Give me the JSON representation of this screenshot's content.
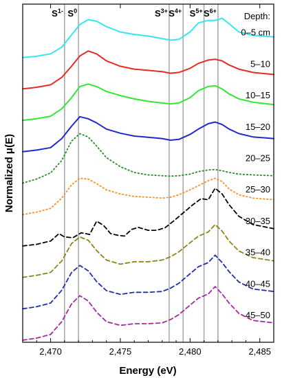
{
  "chart_data": {
    "type": "line",
    "title": "",
    "xlabel": "Energy (eV)",
    "ylabel": "Normalized μ(E)",
    "xlim": [
      2468,
      2486
    ],
    "x_ticks": [
      {
        "value": 2470,
        "label": "2,470"
      },
      {
        "value": 2475,
        "label": "2,475"
      },
      {
        "value": 2480,
        "label": "2,480"
      },
      {
        "value": 2485,
        "label": "2,485"
      }
    ],
    "legend_title": "Depth:",
    "reference_lines": [
      {
        "energy": 2471.0,
        "label": "S",
        "sup": "1-"
      },
      {
        "energy": 2472.0,
        "label": "S",
        "sup": "0"
      },
      {
        "energy": 2478.5,
        "label": "S",
        "sup": "3+"
      },
      {
        "energy": 2479.5,
        "label": "S",
        "sup": "4+"
      },
      {
        "energy": 2481.0,
        "label": "S",
        "sup": "5+"
      },
      {
        "energy": 2482.0,
        "label": "S",
        "sup": "6+"
      }
    ],
    "series": [
      {
        "name": "0–5 cm",
        "color": "#33e6f2",
        "dash": "solid",
        "offset": 9,
        "points": [
          [
            2468,
            0.0
          ],
          [
            2469,
            0.03
          ],
          [
            2470,
            0.09
          ],
          [
            2470.8,
            0.25
          ],
          [
            2471.5,
            0.55
          ],
          [
            2472.1,
            0.8
          ],
          [
            2472.7,
            0.92
          ],
          [
            2473.3,
            0.88
          ],
          [
            2474,
            0.75
          ],
          [
            2475,
            0.62
          ],
          [
            2476,
            0.56
          ],
          [
            2477,
            0.52
          ],
          [
            2478,
            0.46
          ],
          [
            2478.6,
            0.42
          ],
          [
            2479.2,
            0.44
          ],
          [
            2480,
            0.62
          ],
          [
            2480.6,
            0.84
          ],
          [
            2481.3,
            0.9
          ],
          [
            2481.8,
            0.9
          ],
          [
            2482.3,
            0.95
          ],
          [
            2482.8,
            0.82
          ],
          [
            2483.5,
            0.62
          ],
          [
            2484.5,
            0.54
          ],
          [
            2486,
            0.5
          ]
        ]
      },
      {
        "name": "5–10",
        "color": "#e62a1f",
        "dash": "solid",
        "offset": 8,
        "points": [
          [
            2468,
            0.0
          ],
          [
            2469,
            0.04
          ],
          [
            2470,
            0.1
          ],
          [
            2470.8,
            0.28
          ],
          [
            2471.5,
            0.55
          ],
          [
            2472.1,
            0.8
          ],
          [
            2472.7,
            0.92
          ],
          [
            2473.3,
            0.85
          ],
          [
            2474,
            0.68
          ],
          [
            2475,
            0.55
          ],
          [
            2476,
            0.48
          ],
          [
            2477,
            0.45
          ],
          [
            2478,
            0.42
          ],
          [
            2478.6,
            0.38
          ],
          [
            2479.2,
            0.4
          ],
          [
            2480,
            0.5
          ],
          [
            2480.6,
            0.62
          ],
          [
            2481.3,
            0.7
          ],
          [
            2481.8,
            0.72
          ],
          [
            2482.3,
            0.68
          ],
          [
            2482.8,
            0.58
          ],
          [
            2483.5,
            0.48
          ],
          [
            2484.5,
            0.4
          ],
          [
            2486,
            0.35
          ]
        ]
      },
      {
        "name": "10–15",
        "color": "#33e633",
        "dash": "solid",
        "offset": 7,
        "points": [
          [
            2468,
            0.0
          ],
          [
            2469,
            0.04
          ],
          [
            2470,
            0.1
          ],
          [
            2470.8,
            0.28
          ],
          [
            2471.5,
            0.55
          ],
          [
            2472.1,
            0.82
          ],
          [
            2472.7,
            0.88
          ],
          [
            2473.3,
            0.82
          ],
          [
            2474,
            0.7
          ],
          [
            2475,
            0.6
          ],
          [
            2476,
            0.52
          ],
          [
            2477,
            0.46
          ],
          [
            2478,
            0.42
          ],
          [
            2478.6,
            0.4
          ],
          [
            2479.2,
            0.42
          ],
          [
            2480,
            0.55
          ],
          [
            2480.6,
            0.72
          ],
          [
            2481.3,
            0.82
          ],
          [
            2481.8,
            0.84
          ],
          [
            2482.3,
            0.76
          ],
          [
            2482.8,
            0.64
          ],
          [
            2483.5,
            0.52
          ],
          [
            2484.5,
            0.44
          ],
          [
            2486,
            0.38
          ]
        ]
      },
      {
        "name": "15–20",
        "color": "#1f29cc",
        "dash": "solid",
        "offset": 6,
        "points": [
          [
            2468,
            0.0
          ],
          [
            2469,
            0.04
          ],
          [
            2470,
            0.1
          ],
          [
            2470.8,
            0.32
          ],
          [
            2471.5,
            0.62
          ],
          [
            2472.1,
            0.85
          ],
          [
            2472.7,
            0.8
          ],
          [
            2473.3,
            0.7
          ],
          [
            2474,
            0.55
          ],
          [
            2475,
            0.45
          ],
          [
            2476,
            0.38
          ],
          [
            2477,
            0.35
          ],
          [
            2478,
            0.32
          ],
          [
            2478.6,
            0.28
          ],
          [
            2479.2,
            0.3
          ],
          [
            2480,
            0.42
          ],
          [
            2480.6,
            0.55
          ],
          [
            2481.3,
            0.68
          ],
          [
            2481.8,
            0.72
          ],
          [
            2482.3,
            0.66
          ],
          [
            2482.8,
            0.55
          ],
          [
            2483.5,
            0.44
          ],
          [
            2484.5,
            0.36
          ],
          [
            2486,
            0.32
          ]
        ]
      },
      {
        "name": "20–25",
        "color": "#1f8c1f",
        "dash": "dotted",
        "offset": 5,
        "points": [
          [
            2468,
            0.0
          ],
          [
            2469,
            0.1
          ],
          [
            2470,
            0.25
          ],
          [
            2470.8,
            0.55
          ],
          [
            2471.5,
            1.02
          ],
          [
            2472.1,
            1.2
          ],
          [
            2472.7,
            1.12
          ],
          [
            2473.3,
            0.9
          ],
          [
            2474,
            0.62
          ],
          [
            2475,
            0.4
          ],
          [
            2476,
            0.26
          ],
          [
            2477,
            0.2
          ],
          [
            2478,
            0.18
          ],
          [
            2478.6,
            0.17
          ],
          [
            2479.2,
            0.18
          ],
          [
            2480,
            0.22
          ],
          [
            2480.6,
            0.28
          ],
          [
            2481.3,
            0.32
          ],
          [
            2481.8,
            0.33
          ],
          [
            2482.3,
            0.3
          ],
          [
            2482.8,
            0.26
          ],
          [
            2483.5,
            0.22
          ],
          [
            2484.5,
            0.2
          ],
          [
            2486,
            0.18
          ]
        ]
      },
      {
        "name": "25–30",
        "color": "#ff8c1a",
        "dash": "dotted",
        "offset": 4,
        "points": [
          [
            2468,
            0.0
          ],
          [
            2469,
            0.06
          ],
          [
            2470,
            0.15
          ],
          [
            2470.8,
            0.4
          ],
          [
            2471.5,
            0.72
          ],
          [
            2472.1,
            0.88
          ],
          [
            2472.7,
            0.86
          ],
          [
            2473.3,
            0.75
          ],
          [
            2474,
            0.6
          ],
          [
            2475,
            0.5
          ],
          [
            2476,
            0.44
          ],
          [
            2477,
            0.42
          ],
          [
            2478,
            0.4
          ],
          [
            2478.6,
            0.42
          ],
          [
            2479.2,
            0.48
          ],
          [
            2480,
            0.6
          ],
          [
            2480.6,
            0.7
          ],
          [
            2481.3,
            0.82
          ],
          [
            2481.8,
            0.88
          ],
          [
            2482.3,
            0.8
          ],
          [
            2482.8,
            0.62
          ],
          [
            2483.5,
            0.48
          ],
          [
            2484.5,
            0.4
          ],
          [
            2486,
            0.36
          ]
        ]
      },
      {
        "name": "30–35",
        "color": "#000000",
        "dash": "dashed",
        "offset": 3,
        "points": [
          [
            2468,
            0.0
          ],
          [
            2469,
            0.04
          ],
          [
            2470,
            0.12
          ],
          [
            2470.6,
            0.3
          ],
          [
            2471,
            0.22
          ],
          [
            2471.6,
            0.2
          ],
          [
            2472.2,
            0.32
          ],
          [
            2472.8,
            0.28
          ],
          [
            2473.3,
            0.6
          ],
          [
            2473.8,
            0.5
          ],
          [
            2474.3,
            0.3
          ],
          [
            2474.8,
            0.26
          ],
          [
            2475.3,
            0.24
          ],
          [
            2475.8,
            0.4
          ],
          [
            2476.3,
            0.45
          ],
          [
            2477,
            0.38
          ],
          [
            2477.6,
            0.38
          ],
          [
            2478.2,
            0.44
          ],
          [
            2478.8,
            0.6
          ],
          [
            2479.5,
            0.8
          ],
          [
            2480.2,
            1.0
          ],
          [
            2480.8,
            1.15
          ],
          [
            2481.3,
            1.12
          ],
          [
            2481.8,
            1.4
          ],
          [
            2482.3,
            1.26
          ],
          [
            2482.8,
            1.0
          ],
          [
            2483.5,
            0.72
          ],
          [
            2484.5,
            0.52
          ],
          [
            2486,
            0.42
          ]
        ]
      },
      {
        "name": "35–40",
        "color": "#8c8414",
        "dash": "dashed",
        "offset": 2,
        "points": [
          [
            2468,
            0.0
          ],
          [
            2469,
            0.05
          ],
          [
            2470,
            0.12
          ],
          [
            2470.8,
            0.4
          ],
          [
            2471.5,
            0.82
          ],
          [
            2472.1,
            0.98
          ],
          [
            2472.7,
            0.9
          ],
          [
            2473.3,
            0.65
          ],
          [
            2474,
            0.42
          ],
          [
            2475,
            0.32
          ],
          [
            2476,
            0.38
          ],
          [
            2477,
            0.38
          ],
          [
            2478,
            0.42
          ],
          [
            2478.6,
            0.5
          ],
          [
            2479.2,
            0.62
          ],
          [
            2480,
            0.84
          ],
          [
            2480.6,
            1.0
          ],
          [
            2481.3,
            1.1
          ],
          [
            2481.8,
            1.28
          ],
          [
            2482.3,
            1.12
          ],
          [
            2482.8,
            0.88
          ],
          [
            2483.5,
            0.64
          ],
          [
            2484.5,
            0.48
          ],
          [
            2486,
            0.4
          ]
        ]
      },
      {
        "name": "40–45",
        "color": "#1f2ea6",
        "dash": "dashed",
        "offset": 1,
        "points": [
          [
            2468,
            0.0
          ],
          [
            2469,
            0.05
          ],
          [
            2470,
            0.14
          ],
          [
            2470.8,
            0.45
          ],
          [
            2471.5,
            0.88
          ],
          [
            2472.1,
            1.05
          ],
          [
            2472.7,
            0.92
          ],
          [
            2473.3,
            0.66
          ],
          [
            2474,
            0.44
          ],
          [
            2475,
            0.35
          ],
          [
            2476,
            0.4
          ],
          [
            2477,
            0.4
          ],
          [
            2478,
            0.42
          ],
          [
            2478.6,
            0.5
          ],
          [
            2479.2,
            0.62
          ],
          [
            2480,
            0.85
          ],
          [
            2480.6,
            1.02
          ],
          [
            2481.3,
            1.12
          ],
          [
            2481.8,
            1.3
          ],
          [
            2482.3,
            1.12
          ],
          [
            2482.8,
            0.9
          ],
          [
            2483.5,
            0.65
          ],
          [
            2484.5,
            0.48
          ],
          [
            2486,
            0.42
          ]
        ]
      },
      {
        "name": "45–50",
        "color": "#a626a6",
        "dash": "dashed",
        "offset": 0,
        "points": [
          [
            2468,
            0.0
          ],
          [
            2469,
            0.05
          ],
          [
            2470,
            0.14
          ],
          [
            2470.8,
            0.45
          ],
          [
            2471.5,
            0.88
          ],
          [
            2472.1,
            1.08
          ],
          [
            2472.7,
            0.95
          ],
          [
            2473.3,
            0.68
          ],
          [
            2474,
            0.45
          ],
          [
            2475,
            0.36
          ],
          [
            2476,
            0.4
          ],
          [
            2477,
            0.4
          ],
          [
            2478,
            0.42
          ],
          [
            2478.6,
            0.5
          ],
          [
            2479.2,
            0.62
          ],
          [
            2480,
            0.85
          ],
          [
            2480.6,
            1.02
          ],
          [
            2481.3,
            1.12
          ],
          [
            2481.8,
            1.3
          ],
          [
            2482.3,
            1.12
          ],
          [
            2482.8,
            0.9
          ],
          [
            2483.5,
            0.65
          ],
          [
            2484.5,
            0.48
          ],
          [
            2486,
            0.42
          ]
        ]
      }
    ]
  }
}
